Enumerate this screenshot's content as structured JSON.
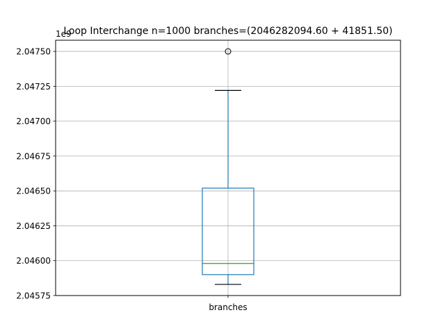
{
  "chart_data": {
    "type": "box",
    "title": "Loop Interchange n=1000  branches=(2046282094.60 + 41851.50)",
    "offset_label": "1e9",
    "categories": [
      "branches"
    ],
    "series": [
      {
        "name": "branches",
        "whisker_low": 2.04583,
        "q1": 2.0459,
        "median": 2.04598,
        "q3": 2.04652,
        "whisker_high": 2.04722,
        "outliers": [
          2.0475
        ]
      }
    ],
    "ylim": [
      2.04575,
      2.04758
    ],
    "yticks": [
      2.04575,
      2.046,
      2.04625,
      2.0465,
      2.04675,
      2.047,
      2.04725,
      2.0475
    ],
    "ytick_labels": [
      "2.04575",
      "2.04600",
      "2.04625",
      "2.04650",
      "2.04675",
      "2.04700",
      "2.04725",
      "2.04750"
    ],
    "grid": true,
    "colors": {
      "box": "#1f77b4",
      "median": "#2ca02c",
      "grid": "#b0b0b0",
      "whisker": "#1f77b4",
      "cap": "#000000",
      "outlier": "#000000"
    }
  }
}
